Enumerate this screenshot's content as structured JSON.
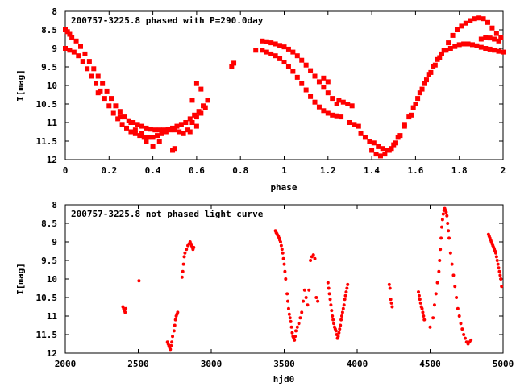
{
  "colors": {
    "marker": "#ff0000",
    "axis": "#000000",
    "background": "#ffffff"
  },
  "chart_data": [
    {
      "type": "scatter",
      "title": "200757-3225.8 phased with P=290.0day",
      "xlabel": "phase",
      "ylabel": "I[mag]",
      "xlim": [
        0,
        2
      ],
      "ylim": [
        12,
        8
      ],
      "y_inverted": true,
      "grid": false,
      "xticks": [
        0,
        0.2,
        0.4,
        0.6,
        0.8,
        1,
        1.2,
        1.4,
        1.6,
        1.8,
        2
      ],
      "xtick_labels": [
        "0",
        "0.2",
        "0.4",
        "0.6",
        "0.8",
        "1",
        "1.2",
        "1.4",
        "1.6",
        "1.8",
        "2"
      ],
      "yticks": [
        8,
        8.5,
        9,
        9.5,
        10,
        10.5,
        11,
        11.5,
        12
      ],
      "ytick_labels": [
        "8",
        "8.5",
        "9",
        "9.5",
        "10",
        "10.5",
        "11",
        "11.5",
        "12"
      ],
      "series": [
        {
          "marker": "square",
          "x": [
            0.0,
            0.01,
            0.02,
            0.03,
            0.05,
            0.07,
            0.09,
            0.11,
            0.13,
            0.15,
            0.17,
            0.19,
            0.21,
            0.23,
            0.25,
            0.27,
            0.29,
            0.31,
            0.33,
            0.35,
            0.37,
            0.39,
            0.41,
            0.43,
            0.45,
            0.47,
            0.49,
            0.51,
            0.53,
            0.55,
            0.57,
            0.59,
            0.61,
            0.63,
            0.65,
            0.0,
            0.02,
            0.04,
            0.06,
            0.08,
            0.1,
            0.12,
            0.14,
            0.16,
            0.18,
            0.2,
            0.22,
            0.24,
            0.26,
            0.28,
            0.3,
            0.32,
            0.34,
            0.36,
            0.38,
            0.4,
            0.42,
            0.44,
            0.46,
            0.48,
            0.5,
            0.52,
            0.54,
            0.56,
            0.58,
            0.6,
            0.62,
            0.64,
            0.15,
            0.25,
            0.3,
            0.32,
            0.35,
            0.37,
            0.4,
            0.43,
            0.49,
            0.5,
            0.57,
            0.6,
            0.58,
            0.62,
            0.6,
            0.76,
            0.77,
            0.87,
            0.9,
            0.92,
            0.94,
            0.96,
            0.98,
            1.0,
            1.02,
            1.04,
            1.06,
            1.08,
            1.1,
            1.12,
            1.14,
            1.16,
            1.18,
            1.2,
            1.22,
            1.24,
            0.9,
            0.92,
            0.94,
            0.96,
            0.98,
            1.0,
            1.02,
            1.04,
            1.06,
            1.08,
            1.1,
            1.12,
            1.14,
            1.16,
            1.18,
            1.2,
            1.22,
            1.24,
            1.26,
            1.18,
            1.2,
            1.25,
            1.27,
            1.29,
            1.31,
            1.3,
            1.32,
            1.34,
            1.35,
            1.37,
            1.39,
            1.41,
            1.43,
            1.45,
            1.47,
            1.49,
            1.51,
            1.53,
            1.55,
            1.57,
            1.59,
            1.61,
            1.63,
            1.65,
            1.67,
            1.69,
            1.71,
            1.73,
            1.75,
            1.77,
            1.79,
            1.81,
            1.83,
            1.85,
            1.87,
            1.89,
            1.91,
            1.93,
            1.95,
            1.97,
            1.99,
            1.4,
            1.42,
            1.44,
            1.46,
            1.48,
            1.5,
            1.52,
            1.55,
            1.58,
            1.6,
            1.62,
            1.64,
            1.66,
            1.68,
            1.7,
            1.72,
            1.74,
            1.76,
            1.78,
            1.8,
            1.82,
            1.84,
            1.86,
            1.88,
            1.9,
            1.92,
            1.94,
            1.96,
            1.98,
            2.0,
            1.9,
            1.92,
            1.94,
            1.96,
            1.98
          ],
          "y": [
            8.5,
            8.55,
            8.62,
            8.7,
            8.8,
            8.95,
            9.15,
            9.35,
            9.55,
            9.75,
            9.95,
            10.15,
            10.35,
            10.55,
            10.7,
            10.85,
            10.95,
            11.0,
            11.05,
            11.1,
            11.15,
            11.18,
            11.2,
            11.2,
            11.2,
            11.18,
            11.15,
            11.1,
            11.05,
            11.0,
            10.9,
            10.8,
            10.7,
            10.55,
            10.4,
            9.0,
            9.05,
            9.1,
            9.2,
            9.35,
            9.55,
            9.75,
            9.95,
            10.15,
            10.35,
            10.55,
            10.75,
            10.9,
            11.05,
            11.15,
            11.25,
            11.3,
            11.35,
            11.4,
            11.4,
            11.4,
            11.35,
            11.3,
            11.25,
            11.2,
            11.2,
            11.25,
            11.3,
            11.2,
            11.0,
            10.85,
            10.75,
            10.6,
            10.2,
            10.85,
            11.0,
            11.2,
            11.3,
            11.5,
            11.65,
            11.5,
            11.75,
            11.7,
            11.25,
            11.1,
            10.4,
            10.1,
            9.95,
            9.5,
            9.4,
            9.05,
            8.8,
            8.82,
            8.85,
            8.88,
            8.92,
            8.96,
            9.02,
            9.1,
            9.2,
            9.32,
            9.45,
            9.6,
            9.75,
            9.9,
            10.05,
            10.2,
            10.35,
            10.5,
            9.05,
            9.1,
            9.15,
            9.2,
            9.28,
            9.37,
            9.48,
            9.62,
            9.78,
            9.95,
            10.12,
            10.3,
            10.45,
            10.58,
            10.68,
            10.75,
            10.8,
            10.82,
            10.85,
            9.8,
            9.9,
            10.4,
            10.45,
            10.5,
            10.55,
            11.0,
            11.05,
            11.1,
            11.3,
            11.4,
            11.5,
            11.55,
            11.65,
            11.7,
            11.75,
            11.7,
            11.55,
            11.35,
            11.1,
            10.85,
            10.6,
            10.35,
            10.1,
            9.85,
            9.65,
            9.45,
            9.25,
            9.05,
            8.85,
            8.65,
            8.5,
            8.4,
            8.32,
            8.25,
            8.2,
            8.18,
            8.2,
            8.3,
            8.45,
            8.6,
            8.7,
            11.75,
            11.85,
            11.9,
            11.85,
            11.75,
            11.6,
            11.4,
            11.05,
            10.8,
            10.5,
            10.2,
            9.95,
            9.7,
            9.5,
            9.3,
            9.15,
            9.05,
            9.0,
            8.95,
            8.9,
            8.88,
            8.88,
            8.9,
            8.93,
            8.97,
            9.0,
            9.02,
            9.05,
            9.08,
            9.1,
            8.75,
            8.7,
            8.72,
            8.75,
            8.8
          ]
        }
      ]
    },
    {
      "type": "scatter",
      "title": "200757-3225.8 not phased light curve",
      "xlabel": "hjd0",
      "ylabel": "I[mag]",
      "xlim": [
        2000,
        5000
      ],
      "ylim": [
        12,
        8
      ],
      "y_inverted": true,
      "grid": false,
      "xticks": [
        2000,
        2500,
        3000,
        3500,
        4000,
        4500,
        5000
      ],
      "xtick_labels": [
        "2000",
        "2500",
        "3000",
        "3500",
        "4000",
        "4500",
        "5000"
      ],
      "yticks": [
        8,
        8.5,
        9,
        9.5,
        10,
        10.5,
        11,
        11.5,
        12
      ],
      "ytick_labels": [
        "8",
        "8.5",
        "9",
        "9.5",
        "10",
        "10.5",
        "11",
        "11.5",
        "12"
      ],
      "series": [
        {
          "marker": "dot",
          "x": [
            2395,
            2400,
            2405,
            2410,
            2415,
            2505,
            2700,
            2705,
            2710,
            2715,
            2720,
            2725,
            2730,
            2735,
            2745,
            2750,
            2755,
            2760,
            2765,
            2770,
            2800,
            2805,
            2810,
            2815,
            2820,
            2830,
            2840,
            2850,
            2855,
            2860,
            2865,
            2870,
            2875,
            2880,
            3440,
            3445,
            3450,
            3455,
            3460,
            3465,
            3470,
            3475,
            3480,
            3485,
            3490,
            3495,
            3500,
            3505,
            3510,
            3520,
            3525,
            3530,
            3535,
            3540,
            3545,
            3550,
            3555,
            3560,
            3565,
            3570,
            3575,
            3580,
            3590,
            3600,
            3610,
            3620,
            3630,
            3640,
            3650,
            3660,
            3670,
            3680,
            3690,
            3700,
            3710,
            3720,
            3730,
            3800,
            3805,
            3810,
            3815,
            3820,
            3825,
            3830,
            3835,
            3840,
            3845,
            3850,
            3855,
            3860,
            3865,
            3870,
            3875,
            3880,
            3885,
            3890,
            3895,
            3900,
            3905,
            3910,
            3915,
            3920,
            3925,
            3930,
            3935,
            4220,
            4225,
            4230,
            4235,
            4240,
            4420,
            4425,
            4430,
            4435,
            4440,
            4445,
            4450,
            4455,
            4460,
            4500,
            4520,
            4530,
            4540,
            4550,
            4560,
            4565,
            4570,
            4575,
            4580,
            4585,
            4590,
            4595,
            4600,
            4605,
            4610,
            4615,
            4620,
            4625,
            4630,
            4640,
            4650,
            4660,
            4670,
            4680,
            4690,
            4700,
            4710,
            4720,
            4730,
            4740,
            4750,
            4760,
            4770,
            4780,
            4900,
            4905,
            4910,
            4915,
            4920,
            4925,
            4930,
            4935,
            4940,
            4945,
            4950,
            4955,
            4960,
            4965,
            4970,
            4975,
            4980,
            4985,
            4990
          ],
          "y": [
            10.75,
            10.8,
            10.85,
            10.9,
            10.8,
            10.05,
            11.7,
            11.75,
            11.8,
            11.85,
            11.9,
            11.8,
            11.7,
            11.55,
            11.4,
            11.25,
            11.1,
            11.0,
            10.95,
            10.9,
            9.95,
            9.8,
            9.6,
            9.4,
            9.3,
            9.2,
            9.1,
            9.05,
            9.0,
            9.05,
            9.1,
            9.15,
            9.2,
            9.15,
            8.7,
            8.75,
            8.78,
            8.82,
            8.85,
            8.9,
            8.95,
            9.0,
            9.1,
            9.2,
            9.3,
            9.45,
            9.6,
            9.8,
            10.0,
            10.4,
            10.6,
            10.8,
            10.95,
            11.05,
            11.15,
            11.3,
            11.45,
            11.55,
            11.6,
            11.65,
            11.55,
            11.4,
            11.3,
            11.2,
            11.05,
            10.9,
            10.6,
            10.3,
            10.5,
            10.7,
            10.3,
            9.5,
            9.4,
            9.35,
            9.45,
            10.5,
            10.6,
            10.1,
            10.25,
            10.4,
            10.55,
            10.7,
            10.85,
            11.0,
            11.1,
            11.2,
            11.3,
            11.35,
            11.4,
            11.5,
            11.6,
            11.55,
            11.45,
            11.35,
            11.25,
            11.1,
            11.0,
            10.9,
            10.8,
            10.7,
            10.55,
            10.45,
            10.35,
            10.25,
            10.15,
            10.15,
            10.25,
            10.55,
            10.65,
            10.75,
            10.35,
            10.45,
            10.55,
            10.65,
            10.75,
            10.8,
            10.9,
            11.0,
            11.1,
            11.3,
            11.05,
            10.7,
            10.4,
            10.1,
            9.8,
            9.5,
            9.2,
            8.9,
            8.6,
            8.4,
            8.25,
            8.15,
            8.1,
            8.15,
            8.2,
            8.3,
            8.5,
            8.7,
            8.9,
            9.3,
            9.6,
            9.9,
            10.2,
            10.5,
            10.8,
            11.0,
            11.2,
            11.35,
            11.5,
            11.6,
            11.7,
            11.75,
            11.7,
            11.65,
            8.8,
            8.85,
            8.9,
            8.95,
            9.0,
            9.05,
            9.1,
            9.15,
            9.2,
            9.25,
            9.3,
            9.4,
            9.5,
            9.6,
            9.7,
            9.8,
            9.9,
            10.0,
            10.2
          ]
        }
      ]
    }
  ]
}
